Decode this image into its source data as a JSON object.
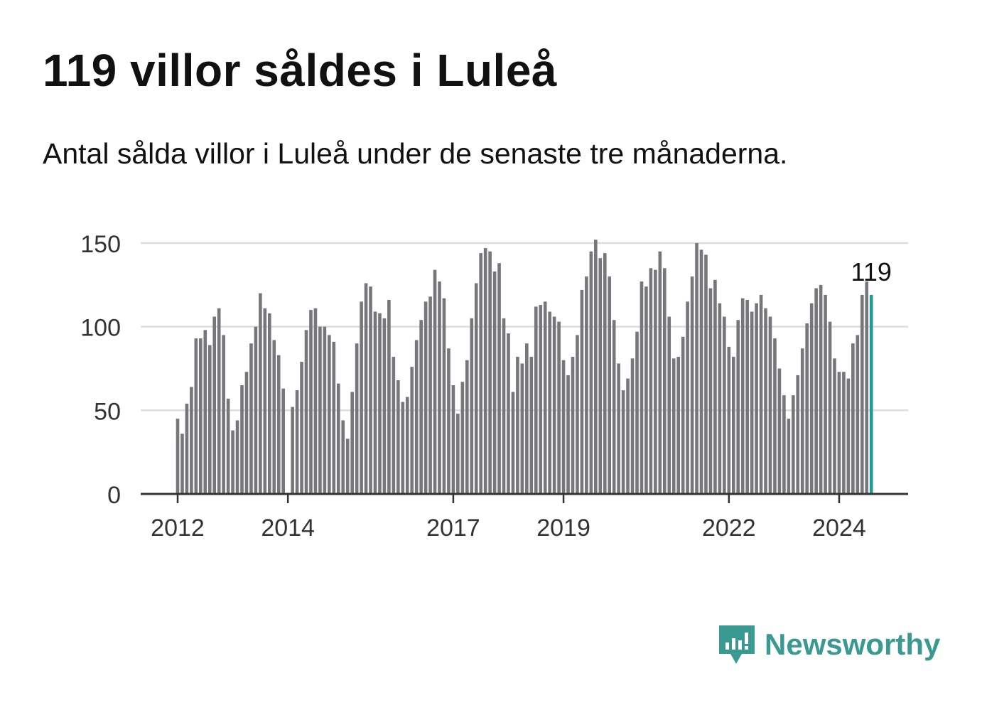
{
  "header": {
    "title": "119 villor såldes i Luleå",
    "subtitle": "Antal sålda villor i Luleå under de senaste tre månaderna."
  },
  "brand": {
    "name": "Newsworthy",
    "icon": "newsworthy-logo-icon",
    "color": "#3a9a91"
  },
  "colors": {
    "bar": "#76767b",
    "highlight": "#1f9b91",
    "grid": "#dddddd",
    "axis": "#333333"
  },
  "chart_data": {
    "type": "bar",
    "title": "Antal sålda villor i Luleå under de senaste tre månaderna.",
    "xlabel": "",
    "ylabel": "",
    "ylim": [
      0,
      150
    ],
    "yticks": [
      0,
      50,
      100,
      150
    ],
    "xticks": [
      {
        "label": "2012",
        "index": 0
      },
      {
        "label": "2014",
        "index": 24
      },
      {
        "label": "2017",
        "index": 60
      },
      {
        "label": "2019",
        "index": 84
      },
      {
        "label": "2022",
        "index": 120
      },
      {
        "label": "2024",
        "index": 144
      }
    ],
    "start": "2012-01",
    "frequency": "monthly",
    "highlight": {
      "index": 151,
      "label": "119"
    },
    "values": [
      45,
      36,
      54,
      64,
      93,
      93,
      98,
      89,
      106,
      111,
      95,
      57,
      38,
      44,
      65,
      73,
      90,
      100,
      120,
      111,
      108,
      92,
      83,
      63,
      0,
      52,
      62,
      79,
      98,
      110,
      111,
      100,
      100,
      95,
      91,
      66,
      44,
      33,
      61,
      90,
      115,
      126,
      124,
      109,
      108,
      105,
      116,
      82,
      68,
      55,
      58,
      76,
      92,
      104,
      115,
      118,
      134,
      127,
      117,
      87,
      65,
      48,
      67,
      80,
      105,
      126,
      144,
      147,
      145,
      133,
      138,
      105,
      96,
      61,
      82,
      78,
      90,
      82,
      112,
      113,
      115,
      109,
      106,
      103,
      80,
      71,
      82,
      95,
      122,
      130,
      145,
      152,
      141,
      144,
      130,
      104,
      78,
      62,
      69,
      81,
      97,
      127,
      124,
      135,
      134,
      145,
      135,
      106,
      81,
      82,
      94,
      115,
      130,
      150,
      146,
      143,
      123,
      128,
      114,
      106,
      88,
      82,
      104,
      117,
      116,
      109,
      114,
      119,
      111,
      106,
      93,
      75,
      59,
      45,
      59,
      71,
      87,
      102,
      114,
      123,
      125,
      119,
      103,
      81,
      73,
      73,
      69,
      90,
      95,
      119,
      127,
      119
    ]
  }
}
